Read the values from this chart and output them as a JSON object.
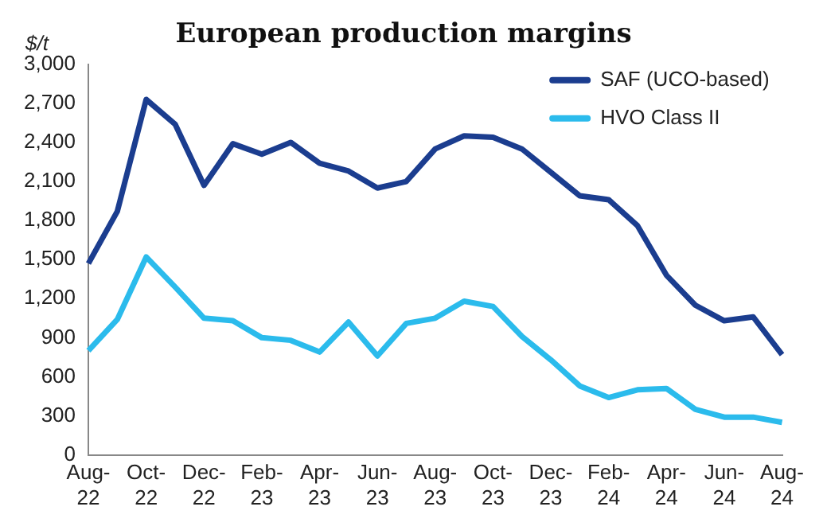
{
  "chart_data": {
    "type": "line",
    "title": "European production margins",
    "ylabel": "$/t",
    "categories": [
      "Aug-22",
      null,
      "Oct-22",
      null,
      "Dec-22",
      null,
      "Feb-23",
      null,
      "Apr-23",
      null,
      "Jun-23",
      null,
      "Aug-23",
      null,
      "Oct-23",
      null,
      "Dec-23",
      null,
      "Feb-24",
      null,
      "Apr-24",
      null,
      "Jun-24",
      null,
      "Aug-24"
    ],
    "series": [
      {
        "name": "SAF (UCO-based)",
        "color": "#1b3d8f",
        "values": [
          1470,
          1870,
          2730,
          2540,
          2070,
          2390,
          2310,
          2400,
          2240,
          2180,
          2050,
          2100,
          2350,
          2450,
          2440,
          2350,
          2170,
          1990,
          1960,
          1760,
          1380,
          1150,
          1030,
          1060,
          770
        ]
      },
      {
        "name": "HVO Class II",
        "color": "#2bbbec",
        "values": [
          800,
          1040,
          1520,
          1290,
          1050,
          1030,
          900,
          880,
          790,
          1020,
          760,
          1010,
          1050,
          1180,
          1140,
          910,
          730,
          530,
          440,
          500,
          510,
          350,
          290,
          290,
          250
        ]
      }
    ],
    "ylim": [
      0,
      3000
    ],
    "yticks": [
      0,
      300,
      600,
      900,
      {
        "value": 1200,
        "label": "1,200"
      },
      {
        "value": 1500,
        "label": "1,500"
      },
      {
        "value": 1800,
        "label": "1,800"
      },
      {
        "value": 2100,
        "label": "2,100"
      },
      {
        "value": 2400,
        "label": "2,400"
      },
      {
        "value": 2700,
        "label": "2,700"
      },
      {
        "value": 3000,
        "label": "3,000"
      }
    ],
    "grid": false,
    "legend": "top right",
    "marker": "none",
    "line_style": "solid"
  }
}
